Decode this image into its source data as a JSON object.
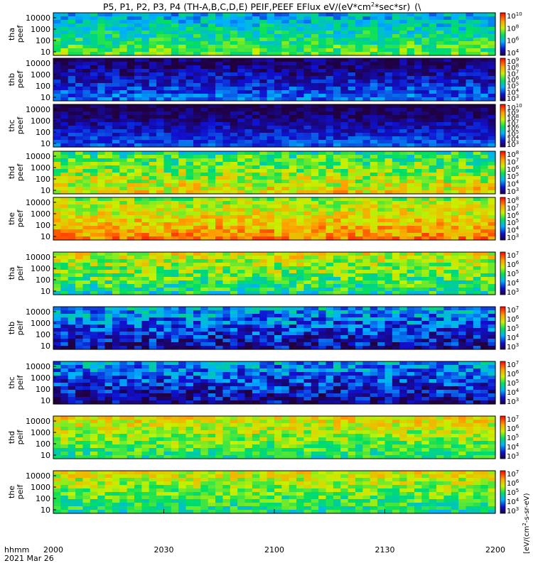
{
  "chart_data": {
    "type": "heatmap",
    "title": "P5, P1, P2, P3, P4 (TH-A,B,C,D,E) PEIF,PEEF EFlux eV/(eV*cm",
    "title_sup": "2",
    "title_end": "*sec*sr)",
    "title_trail": "(\\",
    "x_corner_label": "hhmm",
    "x_date_label": "2021 Mar 26",
    "x_ticks": [
      "2000",
      "2030",
      "2100",
      "2130",
      "2200"
    ],
    "x_tick_minutes": [
      0,
      30,
      60,
      90,
      120
    ],
    "xlim_minutes": [
      0,
      120
    ],
    "yscale": "log",
    "y_ticks": [
      "10000",
      "1000",
      "100",
      "10"
    ],
    "colorscale": "rainbow",
    "colorbar_unit": "eV/(cm",
    "colorbar_unit_sup": "2",
    "colorbar_unit_end": "-s-sr-eV)",
    "colorbar_unit_bracket": "[",
    "panels": [
      {
        "label": [
          "tha",
          "peef"
        ],
        "cbar_exp": [
          4,
          6,
          8,
          10
        ],
        "mean": 0.45,
        "variability": 0.12
      },
      {
        "label": [
          "thb",
          "peef"
        ],
        "cbar_exp": [
          3,
          4,
          5,
          6,
          7,
          8,
          9
        ],
        "mean": 0.15,
        "variability": 0.1
      },
      {
        "label": [
          "thc",
          "peef"
        ],
        "cbar_exp": [
          3,
          4,
          5,
          6,
          7,
          8,
          9,
          10
        ],
        "mean": 0.12,
        "variability": 0.08
      },
      {
        "label": [
          "thd",
          "peef"
        ],
        "cbar_exp": [
          3,
          4,
          5,
          6,
          7,
          8
        ],
        "mean": 0.6,
        "variability": 0.15
      },
      {
        "label": [
          "the",
          "peef"
        ],
        "cbar_exp": [
          3,
          4,
          5,
          6,
          7,
          8
        ],
        "mean": 0.72,
        "variability": 0.12
      },
      {
        "label": [
          "tha",
          "peif"
        ],
        "cbar_exp": [
          3,
          4,
          5,
          6,
          7
        ],
        "mean": 0.55,
        "variability": 0.15
      },
      {
        "label": [
          "thb",
          "peif"
        ],
        "cbar_exp": [
          3,
          4,
          5,
          6,
          7
        ],
        "mean": 0.2,
        "variability": 0.15
      },
      {
        "label": [
          "thc",
          "peif"
        ],
        "cbar_exp": [
          3,
          4,
          5,
          6,
          7
        ],
        "mean": 0.18,
        "variability": 0.15
      },
      {
        "label": [
          "thd",
          "peif"
        ],
        "cbar_exp": [
          3,
          4,
          5,
          6,
          7
        ],
        "mean": 0.58,
        "variability": 0.12
      },
      {
        "label": [
          "the",
          "peif"
        ],
        "cbar_exp": [
          3,
          4,
          5,
          6,
          7
        ],
        "mean": 0.55,
        "variability": 0.12
      }
    ]
  }
}
